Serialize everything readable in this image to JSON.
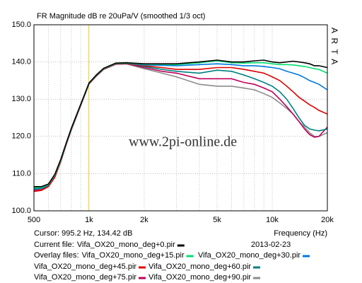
{
  "chart_data": {
    "type": "line",
    "title": "FR Magnitude dB re 20uPa/V (smoothed 1/3 oct)",
    "brand": "A R T A",
    "watermark": "www.2pi-online.de",
    "x_label": "Frequency (Hz)",
    "log_x": true,
    "grid": true,
    "xlim": [
      500,
      20000
    ],
    "xticks": [
      500,
      {
        "value": 1000,
        "label": "1k"
      },
      {
        "value": 2000,
        "label": "2k"
      },
      {
        "value": 5000,
        "label": "5k"
      },
      {
        "value": 10000,
        "label": "10k"
      },
      {
        "value": 20000,
        "label": "20k"
      }
    ],
    "xminor": [
      600,
      700,
      800,
      900,
      3000,
      4000,
      6000,
      7000,
      8000,
      9000
    ],
    "ylim": [
      100,
      150
    ],
    "yticks": [
      {
        "value": 100,
        "label": "100.0"
      },
      {
        "value": 110,
        "label": "110.0"
      },
      {
        "value": 120,
        "label": "120.0"
      },
      {
        "value": 130,
        "label": "130.0"
      },
      {
        "value": 140,
        "label": "140.0"
      },
      {
        "value": 150,
        "label": "150.0"
      }
    ],
    "cursor": {
      "x": 995.2,
      "y": 134.42,
      "label": "Cursor: 995.2 Hz, 134.42 dB",
      "color": "#e8d060"
    },
    "date": "2013-02-23",
    "current_label": "Current file:",
    "overlay_label": "Overlay files:",
    "x": [
      500,
      550,
      600,
      650,
      700,
      750,
      800,
      900,
      1000,
      1100,
      1200,
      1400,
      1600,
      2000,
      2500,
      3000,
      4000,
      5000,
      6000,
      7000,
      8000,
      9000,
      10000,
      11000,
      12000,
      13000,
      14000,
      15000,
      16000,
      17000,
      18000,
      20000
    ],
    "series": [
      {
        "name": "Vifa_OX20_mono_deg+0.pir",
        "color": "#000000",
        "values": [
          106.5,
          106.5,
          107.2,
          109.8,
          113.8,
          118.2,
          122.2,
          128.6,
          134.4,
          136.6,
          138.3,
          139.7,
          139.8,
          139.5,
          139.5,
          139.5,
          140,
          140.5,
          140,
          140,
          140.3,
          140.5,
          140,
          139.8,
          140,
          140.2,
          140,
          139.8,
          139.5,
          139,
          139,
          138.5
        ]
      },
      {
        "name": "Vifa_OX20_mono_deg+15.pir",
        "color": "#00e070",
        "values": [
          106.2,
          106.3,
          107.1,
          109.6,
          113.6,
          118.1,
          122.1,
          128.5,
          134.3,
          136.5,
          138.2,
          139.6,
          139.7,
          139.4,
          139.4,
          139.3,
          139.8,
          140.3,
          139.8,
          139.7,
          139.8,
          139.8,
          139.5,
          139.3,
          139.3,
          139.2,
          139,
          138.8,
          138.5,
          138.2,
          138,
          137
        ]
      },
      {
        "name": "Vifa_OX20_mono_deg+30.pir",
        "color": "#0078e0",
        "values": [
          106,
          106.2,
          107,
          109.5,
          113.5,
          118,
          122,
          128.5,
          134.3,
          136.5,
          138.2,
          139.6,
          139.7,
          139.2,
          139.1,
          139,
          139.3,
          139.5,
          139.3,
          139,
          139,
          138.8,
          138.5,
          138.2,
          137.5,
          137,
          136.5,
          135.8,
          135,
          134.5,
          134,
          132.5
        ]
      },
      {
        "name": "Vifa_OX20_mono_deg+45.pir",
        "color": "#e00000",
        "values": [
          105.2,
          105.5,
          106.5,
          109,
          113.2,
          117.8,
          121.8,
          128.3,
          134.2,
          136.4,
          138.1,
          139.5,
          139.6,
          139,
          138.5,
          138,
          138,
          138.5,
          138.5,
          138,
          137.5,
          137,
          136,
          135,
          133.5,
          132,
          130.5,
          129.5,
          128.5,
          127.8,
          127,
          126
        ]
      },
      {
        "name": "Vifa_OX20_mono_deg+60.pir",
        "color": "#008080",
        "values": [
          105.8,
          106,
          106.8,
          109.3,
          113.4,
          117.9,
          121.9,
          128.4,
          134.2,
          136.4,
          138.1,
          139.5,
          139.6,
          138.8,
          138,
          137.5,
          137,
          137.8,
          137.5,
          136.5,
          135.5,
          134.5,
          133.5,
          132,
          130,
          127.5,
          125,
          123,
          122,
          121.7,
          121.5,
          122
        ]
      },
      {
        "name": "Vifa_OX20_mono_deg+75.pir",
        "color": "#c0005a",
        "values": [
          105.5,
          105.7,
          106.6,
          109.1,
          113.3,
          117.8,
          121.8,
          128.3,
          134.1,
          136.3,
          138,
          139.4,
          139.5,
          138.5,
          137.5,
          137,
          135.5,
          135.5,
          135.5,
          134.5,
          134,
          133,
          132,
          130,
          128,
          126,
          124,
          122,
          120.5,
          119.8,
          120,
          122.5
        ]
      },
      {
        "name": "Vifa_OX20_mono_deg+90.pir",
        "color": "#8c8c8c",
        "values": [
          106.3,
          106.4,
          107.1,
          109.7,
          113.7,
          118.1,
          122.1,
          128.5,
          134.2,
          136.4,
          138.1,
          139.4,
          139.5,
          138.2,
          137,
          136,
          134,
          133.5,
          133.5,
          133,
          132.5,
          131.5,
          130.5,
          129,
          127.5,
          126,
          124,
          122.5,
          121,
          120,
          120,
          121
        ]
      }
    ]
  }
}
